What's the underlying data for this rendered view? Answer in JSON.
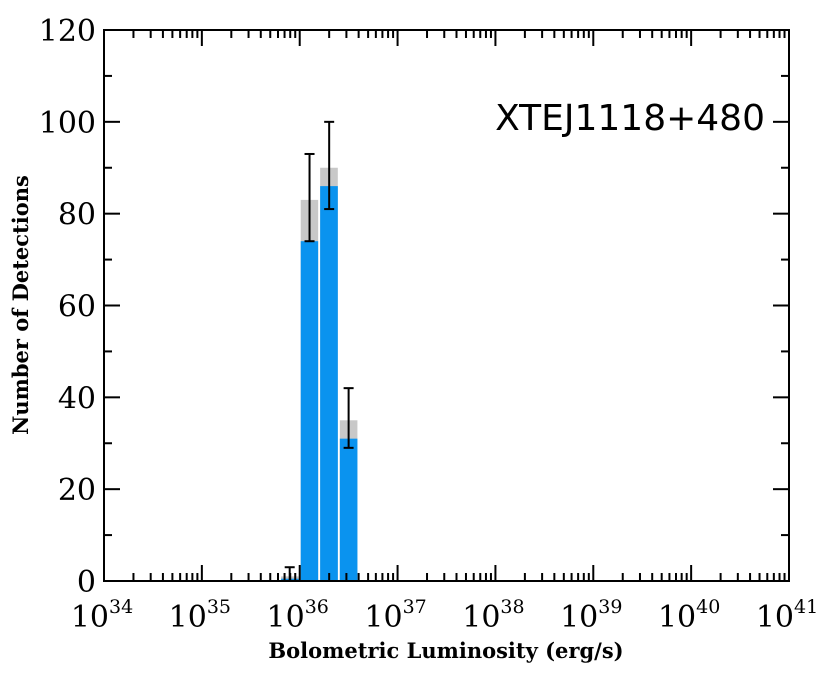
{
  "chart_data": {
    "type": "bar",
    "title": "",
    "annotation": "XTEJ1118+480",
    "xlabel": "Bolometric Luminosity (erg/s)",
    "ylabel": "Number of Detections",
    "xscale": "log",
    "xlim": [
      1e+34,
      1e+41
    ],
    "ylim": [
      0,
      120
    ],
    "x_tick_base": "10",
    "x_tick_exponents": [
      "34",
      "35",
      "36",
      "37",
      "38",
      "39",
      "40",
      "41"
    ],
    "y_ticks": [
      "0",
      "20",
      "40",
      "60",
      "80",
      "100",
      "120"
    ],
    "grid": false,
    "bin_width_dex": 0.2,
    "series": [
      {
        "name": "",
        "color": "#c8c8c8",
        "bins": [
          {
            "x": [
              6.3e+35,
              1e+36
            ],
            "value": 1
          },
          {
            "x": [
              1e+36,
              1.58e+36
            ],
            "value": 83
          },
          {
            "x": [
              1.58e+36,
              2.51e+36
            ],
            "value": 90
          },
          {
            "x": [
              2.51e+36,
              3.98e+36
            ],
            "value": 35
          }
        ]
      },
      {
        "name": "",
        "color": "#0a93ef",
        "bins": [
          {
            "x": [
              6.3e+35,
              1e+36
            ],
            "value": 0.5
          },
          {
            "x": [
              1e+36,
              1.58e+36
            ],
            "value": 74
          },
          {
            "x": [
              1.58e+36,
              2.51e+36
            ],
            "value": 86
          },
          {
            "x": [
              2.51e+36,
              3.98e+36
            ],
            "value": 31
          }
        ]
      }
    ],
    "error_bars": [
      {
        "x": 7.9e+35,
        "low": 0,
        "high": 3
      },
      {
        "x": 1.26e+36,
        "low": 74,
        "high": 93
      },
      {
        "x": 2e+36,
        "low": 81,
        "high": 100
      },
      {
        "x": 3.16e+36,
        "low": 29,
        "high": 42
      }
    ]
  }
}
